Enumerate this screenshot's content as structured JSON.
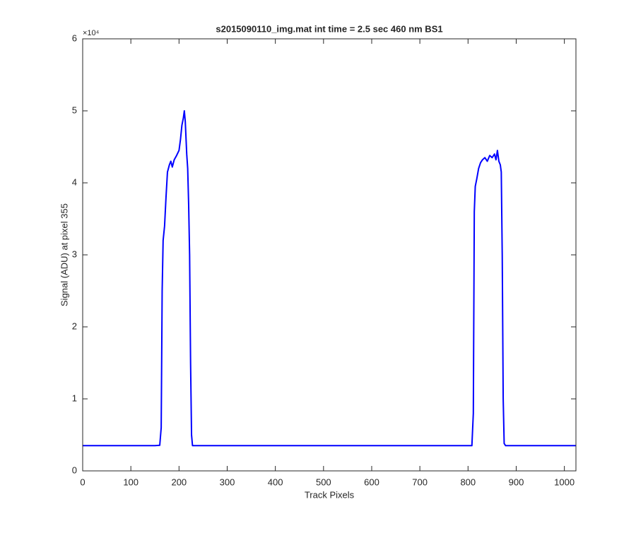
{
  "chart_data": {
    "type": "line",
    "title": "s2015090110_img.mat int time = 2.5 sec  460 nm BS1",
    "x_label": "Track Pixels",
    "y_label": "Signal (ADU) at pixel 355",
    "y_multiplier": "×10⁴",
    "xlim": [
      0,
      1024
    ],
    "ylim": [
      0,
      60000
    ],
    "xticks": [
      0,
      100,
      200,
      300,
      400,
      500,
      600,
      700,
      800,
      900,
      1000
    ],
    "yticks": [
      {
        "value": 0,
        "label": "0"
      },
      {
        "value": 10000,
        "label": "1"
      },
      {
        "value": 20000,
        "label": "2"
      },
      {
        "value": 30000,
        "label": "3"
      },
      {
        "value": 40000,
        "label": "4"
      },
      {
        "value": 50000,
        "label": "5"
      },
      {
        "value": 60000,
        "label": "6"
      }
    ],
    "grid": false,
    "box": true,
    "x": [
      0,
      50,
      100,
      150,
      160,
      163,
      165,
      167,
      170,
      173,
      176,
      180,
      183,
      186,
      190,
      195,
      200,
      203,
      206,
      209,
      211,
      213,
      216,
      218,
      220,
      222,
      224,
      226,
      228,
      300,
      400,
      500,
      600,
      700,
      800,
      808,
      811,
      813,
      815,
      818,
      822,
      826,
      830,
      835,
      840,
      845,
      850,
      855,
      858,
      861,
      864,
      867,
      869,
      871,
      873,
      875,
      878,
      900,
      1000,
      1024
    ],
    "series": [
      {
        "color": "#0000ff",
        "values": [
          3500,
          3500,
          3500,
          3500,
          3550,
          6000,
          25000,
          32000,
          34000,
          38000,
          41500,
          42500,
          43000,
          42200,
          43200,
          43800,
          44500,
          46000,
          48000,
          49000,
          50000,
          48500,
          44000,
          42000,
          37000,
          30000,
          15000,
          5000,
          3500,
          3500,
          3500,
          3500,
          3500,
          3500,
          3500,
          3500,
          8000,
          36000,
          39500,
          40500,
          42000,
          42800,
          43200,
          43500,
          43000,
          43800,
          43500,
          44000,
          43200,
          44500,
          43000,
          42500,
          41500,
          30000,
          10000,
          3800,
          3500,
          3500,
          3500,
          3500
        ]
      }
    ]
  }
}
